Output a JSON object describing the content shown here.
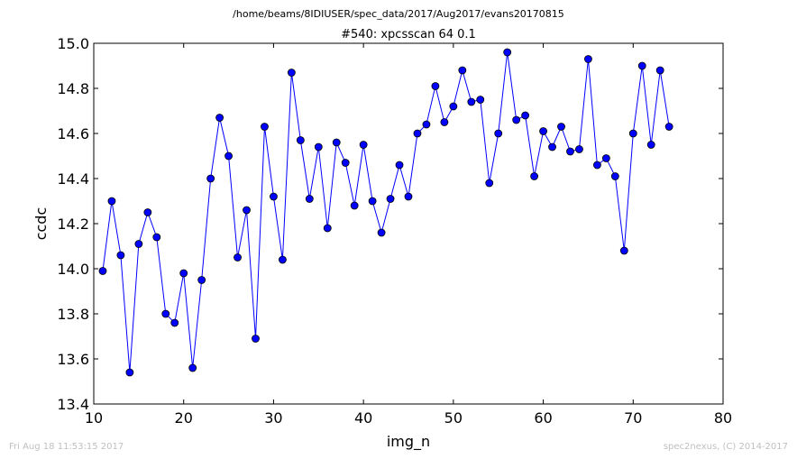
{
  "header": {
    "path": "/home/beams/8IDIUSER/spec_data/2017/Aug2017/evans20170815"
  },
  "footer": {
    "timestamp": "Fri Aug 18 11:53:15 2017",
    "credit": "spec2nexus, (C) 2014-2017"
  },
  "colors": {
    "series": "#0000ff",
    "axes": "#000000",
    "footer_text": "#bfbfbf"
  },
  "chart_data": {
    "type": "line",
    "title": "#540: xpcsscan 64 0.1",
    "xlabel": "img_n",
    "ylabel": "ccdc",
    "xlim": [
      10,
      80
    ],
    "ylim": [
      13.4,
      15.0
    ],
    "x_ticks": [
      "10",
      "20",
      "30",
      "40",
      "50",
      "60",
      "70",
      "80"
    ],
    "y_ticks": [
      "13.4",
      "13.6",
      "13.8",
      "14.0",
      "14.2",
      "14.4",
      "14.6",
      "14.8",
      "15.0"
    ],
    "grid": false,
    "markers": "circle",
    "series": [
      {
        "x": [
          11,
          12,
          13,
          14,
          15,
          16,
          17,
          18,
          19,
          20,
          21,
          22,
          23,
          24,
          25,
          26,
          27,
          28,
          29,
          30,
          31,
          32,
          33,
          34,
          35,
          36,
          37,
          38,
          39,
          40,
          41,
          42,
          43,
          44,
          45,
          46,
          47,
          48,
          49,
          50,
          51,
          52,
          53,
          54,
          55,
          56,
          57,
          58,
          59,
          60,
          61,
          62,
          63,
          64,
          65,
          66,
          67,
          68,
          69,
          70,
          71,
          72,
          73,
          74
        ],
        "y": [
          13.99,
          14.3,
          14.06,
          13.54,
          14.11,
          14.25,
          14.14,
          13.8,
          13.76,
          13.98,
          13.56,
          13.95,
          14.4,
          14.67,
          14.5,
          14.05,
          14.26,
          13.69,
          14.63,
          14.32,
          14.04,
          14.87,
          14.57,
          14.31,
          14.54,
          14.18,
          14.56,
          14.47,
          14.28,
          14.55,
          14.3,
          14.16,
          14.31,
          14.46,
          14.32,
          14.6,
          14.64,
          14.81,
          14.65,
          14.72,
          14.88,
          14.74,
          14.75,
          14.38,
          14.6,
          14.96,
          14.66,
          14.68,
          14.41,
          14.61,
          14.54,
          14.63,
          14.52,
          14.53,
          14.93,
          14.46,
          14.49,
          14.41,
          14.08,
          14.6,
          14.9,
          14.55,
          14.88,
          14.63
        ]
      }
    ]
  }
}
